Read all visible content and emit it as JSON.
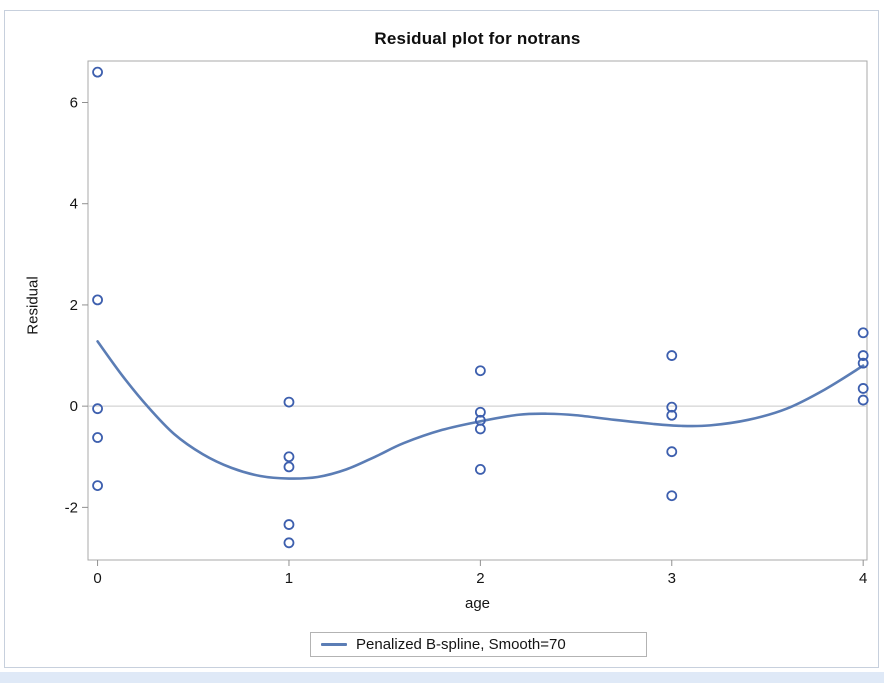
{
  "chart_data": {
    "type": "scatter",
    "title": "Residual plot for notrans",
    "xlabel": "age",
    "ylabel": "Residual",
    "x_ticks": [
      0,
      1,
      2,
      3,
      4
    ],
    "y_ticks": [
      6,
      4,
      2,
      0,
      -2
    ],
    "xlim": [
      -0.05,
      4.02
    ],
    "ylim": [
      -3.04,
      6.82
    ],
    "grid": false,
    "refline_y": 0,
    "legend": {
      "position": "bottom",
      "label": "Penalized B-spline, Smooth=70"
    },
    "points": [
      [
        0,
        6.6
      ],
      [
        0,
        2.1
      ],
      [
        0,
        -0.05
      ],
      [
        0,
        -0.62
      ],
      [
        0,
        -1.57
      ],
      [
        1,
        0.08
      ],
      [
        1,
        -1.0
      ],
      [
        1,
        -1.2
      ],
      [
        1,
        -2.34
      ],
      [
        1,
        -2.7
      ],
      [
        2,
        0.7
      ],
      [
        2,
        -0.12
      ],
      [
        2,
        -0.28
      ],
      [
        2,
        -0.45
      ],
      [
        2,
        -1.25
      ],
      [
        3,
        1.0
      ],
      [
        3,
        -0.02
      ],
      [
        3,
        -0.18
      ],
      [
        3,
        -0.9
      ],
      [
        3,
        -1.77
      ],
      [
        4,
        1.45
      ],
      [
        4,
        1.0
      ],
      [
        4,
        0.85
      ],
      [
        4,
        0.35
      ],
      [
        4,
        0.12
      ]
    ],
    "series": [
      {
        "name": "Penalized B-spline, Smooth=70",
        "type": "line",
        "points": [
          [
            0,
            1.28
          ],
          [
            0.13,
            0.6
          ],
          [
            0.26,
            0.0
          ],
          [
            0.4,
            -0.55
          ],
          [
            0.55,
            -0.95
          ],
          [
            0.7,
            -1.22
          ],
          [
            0.85,
            -1.38
          ],
          [
            1.0,
            -1.43
          ],
          [
            1.15,
            -1.4
          ],
          [
            1.3,
            -1.25
          ],
          [
            1.45,
            -1.0
          ],
          [
            1.6,
            -0.73
          ],
          [
            1.8,
            -0.47
          ],
          [
            2.0,
            -0.3
          ],
          [
            2.2,
            -0.17
          ],
          [
            2.35,
            -0.15
          ],
          [
            2.5,
            -0.18
          ],
          [
            2.7,
            -0.27
          ],
          [
            2.9,
            -0.35
          ],
          [
            3.05,
            -0.39
          ],
          [
            3.2,
            -0.38
          ],
          [
            3.4,
            -0.27
          ],
          [
            3.6,
            -0.05
          ],
          [
            3.8,
            0.33
          ],
          [
            4.0,
            0.8
          ]
        ]
      }
    ],
    "colors": {
      "marker": "#3d5fae",
      "line": "#5b7db5",
      "refline": "#c9c9c9",
      "frame": "#a9a9a9",
      "tick": "#909090",
      "text": "#141414"
    }
  }
}
